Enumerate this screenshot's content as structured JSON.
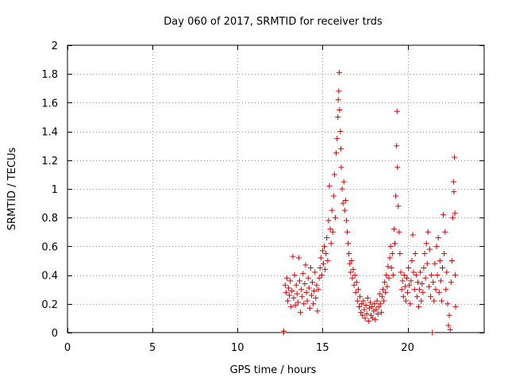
{
  "chart_data": {
    "type": "scatter",
    "title": "Day 060 of 2017, SRMTID for receiver trds",
    "xlabel": "GPS time / hours",
    "ylabel": "SRMTID / TECUs",
    "xlim": [
      0,
      24.5
    ],
    "ylim": [
      0,
      2
    ],
    "xticks": [
      0,
      5,
      10,
      15,
      20
    ],
    "xtick_labels": [
      "0",
      "5",
      "10",
      "15",
      "20"
    ],
    "yticks": [
      0,
      0.2,
      0.4,
      0.6,
      0.8,
      1,
      1.2,
      1.4,
      1.6,
      1.8,
      2
    ],
    "ytick_labels": [
      "0",
      "0.2",
      "0.4",
      "0.6",
      "0.8",
      "1",
      "1.2",
      "1.4",
      "1.6",
      "1.8",
      "2"
    ],
    "grid": true,
    "marker": "+",
    "series": [
      {
        "name": "SRMTID",
        "color": "#e00000",
        "points": [
          [
            12.7,
            0.0
          ],
          [
            12.72,
            0.01
          ],
          [
            12.8,
            0.33
          ],
          [
            12.85,
            0.28
          ],
          [
            12.9,
            0.38
          ],
          [
            12.95,
            0.22
          ],
          [
            13.0,
            0.31
          ],
          [
            13.05,
            0.26
          ],
          [
            13.1,
            0.36
          ],
          [
            13.15,
            0.18
          ],
          [
            13.2,
            0.29
          ],
          [
            13.25,
            0.53
          ],
          [
            13.3,
            0.24
          ],
          [
            13.35,
            0.4
          ],
          [
            13.4,
            0.19
          ],
          [
            13.45,
            0.33
          ],
          [
            13.5,
            0.27
          ],
          [
            13.55,
            0.21
          ],
          [
            13.6,
            0.52
          ],
          [
            13.65,
            0.36
          ],
          [
            13.7,
            0.14
          ],
          [
            13.75,
            0.3
          ],
          [
            13.8,
            0.25
          ],
          [
            13.85,
            0.41
          ],
          [
            13.9,
            0.2
          ],
          [
            13.95,
            0.34
          ],
          [
            14.0,
            0.47
          ],
          [
            14.05,
            0.28
          ],
          [
            14.1,
            0.22
          ],
          [
            14.15,
            0.38
          ],
          [
            14.2,
            0.31
          ],
          [
            14.25,
            0.17
          ],
          [
            14.3,
            0.45
          ],
          [
            14.35,
            0.26
          ],
          [
            14.4,
            0.35
          ],
          [
            14.45,
            0.2
          ],
          [
            14.5,
            0.29
          ],
          [
            14.55,
            0.42
          ],
          [
            14.6,
            0.24
          ],
          [
            14.65,
            0.33
          ],
          [
            14.7,
            0.15
          ],
          [
            14.75,
            0.3
          ],
          [
            14.8,
            0.38
          ],
          [
            14.85,
            0.45
          ],
          [
            14.9,
            0.52
          ],
          [
            14.95,
            0.4
          ],
          [
            15.0,
            0.57
          ],
          [
            15.05,
            0.48
          ],
          [
            15.1,
            0.6
          ],
          [
            15.15,
            0.44
          ],
          [
            15.2,
            0.55
          ],
          [
            15.25,
            0.66
          ],
          [
            15.3,
            0.5
          ],
          [
            15.35,
            0.78
          ],
          [
            15.4,
            1.02
          ],
          [
            15.45,
            0.72
          ],
          [
            15.5,
            0.62
          ],
          [
            15.55,
            0.85
          ],
          [
            15.6,
            0.7
          ],
          [
            15.65,
            0.95
          ],
          [
            15.7,
            1.1
          ],
          [
            15.75,
            0.8
          ],
          [
            15.8,
            1.25
          ],
          [
            15.85,
            1.35
          ],
          [
            15.9,
            1.5
          ],
          [
            15.92,
            1.62
          ],
          [
            15.95,
            1.68
          ],
          [
            15.98,
            1.81
          ],
          [
            16.0,
            1.55
          ],
          [
            16.05,
            1.4
          ],
          [
            16.08,
            1.28
          ],
          [
            16.1,
            1.15
          ],
          [
            16.15,
            1.0
          ],
          [
            16.2,
            0.9
          ],
          [
            16.25,
            1.05
          ],
          [
            16.3,
            0.85
          ],
          [
            16.35,
            0.92
          ],
          [
            16.4,
            0.78
          ],
          [
            16.45,
            0.7
          ],
          [
            16.5,
            0.62
          ],
          [
            16.55,
            0.55
          ],
          [
            16.6,
            0.48
          ],
          [
            16.65,
            0.42
          ],
          [
            16.7,
            0.5
          ],
          [
            16.75,
            0.38
          ],
          [
            16.8,
            0.44
          ],
          [
            16.85,
            0.33
          ],
          [
            16.9,
            0.4
          ],
          [
            16.95,
            0.28
          ],
          [
            17.0,
            0.35
          ],
          [
            17.05,
            0.22
          ],
          [
            17.1,
            0.3
          ],
          [
            17.15,
            0.18
          ],
          [
            17.2,
            0.25
          ],
          [
            17.25,
            0.14
          ],
          [
            17.3,
            0.2
          ],
          [
            17.35,
            0.12
          ],
          [
            17.4,
            0.22
          ],
          [
            17.45,
            0.16
          ],
          [
            17.5,
            0.1
          ],
          [
            17.55,
            0.19
          ],
          [
            17.6,
            0.13
          ],
          [
            17.65,
            0.24
          ],
          [
            17.7,
            0.08
          ],
          [
            17.75,
            0.17
          ],
          [
            17.8,
            0.21
          ],
          [
            17.85,
            0.12
          ],
          [
            17.9,
            0.18
          ],
          [
            17.95,
            0.1
          ],
          [
            18.0,
            0.15
          ],
          [
            18.05,
            0.2
          ],
          [
            18.1,
            0.09
          ],
          [
            18.15,
            0.16
          ],
          [
            18.2,
            0.22
          ],
          [
            18.25,
            0.13
          ],
          [
            18.3,
            0.18
          ],
          [
            18.35,
            0.27
          ],
          [
            18.4,
            0.2
          ],
          [
            18.45,
            0.14
          ],
          [
            18.5,
            0.25
          ],
          [
            18.55,
            0.3
          ],
          [
            18.6,
            0.22
          ],
          [
            18.65,
            0.35
          ],
          [
            18.7,
            0.28
          ],
          [
            18.75,
            0.4
          ],
          [
            18.8,
            0.32
          ],
          [
            18.85,
            0.46
          ],
          [
            18.9,
            0.38
          ],
          [
            18.95,
            0.52
          ],
          [
            19.0,
            0.6
          ],
          [
            19.05,
            0.45
          ],
          [
            19.1,
            0.55
          ],
          [
            19.15,
            0.4
          ],
          [
            19.2,
            0.72
          ],
          [
            19.25,
            0.62
          ],
          [
            19.3,
            0.95
          ],
          [
            19.35,
            1.3
          ],
          [
            19.38,
            1.54
          ],
          [
            19.4,
            1.15
          ],
          [
            19.45,
            0.88
          ],
          [
            19.5,
            0.7
          ],
          [
            19.55,
            0.55
          ],
          [
            19.6,
            0.42
          ],
          [
            19.65,
            0.3
          ],
          [
            19.7,
            0.36
          ],
          [
            19.75,
            0.25
          ],
          [
            19.8,
            0.4
          ],
          [
            19.85,
            0.32
          ],
          [
            19.9,
            0.22
          ],
          [
            19.95,
            0.38
          ],
          [
            20.0,
            0.28
          ],
          [
            20.05,
            0.45
          ],
          [
            20.1,
            0.33
          ],
          [
            20.15,
            0.2
          ],
          [
            20.2,
            0.36
          ],
          [
            20.25,
            0.5
          ],
          [
            20.3,
            0.68
          ],
          [
            20.35,
            0.42
          ],
          [
            20.4,
            0.3
          ],
          [
            20.45,
            0.55
          ],
          [
            20.5,
            0.4
          ],
          [
            20.55,
            0.25
          ],
          [
            20.6,
            0.35
          ],
          [
            20.65,
            0.18
          ],
          [
            20.7,
            0.3
          ],
          [
            20.75,
            0.42
          ],
          [
            20.8,
            0.22
          ],
          [
            20.85,
            0.34
          ],
          [
            20.9,
            0.28
          ],
          [
            20.95,
            0.45
          ],
          [
            21.0,
            0.55
          ],
          [
            21.05,
            0.38
          ],
          [
            21.1,
            0.62
          ],
          [
            21.15,
            0.48
          ],
          [
            21.2,
            0.7
          ],
          [
            21.25,
            0.32
          ],
          [
            21.3,
            0.58
          ],
          [
            21.35,
            0.25
          ],
          [
            21.4,
            0.4
          ],
          [
            21.45,
            0.0
          ],
          [
            21.5,
            0.35
          ],
          [
            21.55,
            0.22
          ],
          [
            21.6,
            0.48
          ],
          [
            21.65,
            0.3
          ],
          [
            21.7,
            0.6
          ],
          [
            21.75,
            0.4
          ],
          [
            21.8,
            0.66
          ],
          [
            21.85,
            0.28
          ],
          [
            21.9,
            0.5
          ],
          [
            21.95,
            0.36
          ],
          [
            22.0,
            0.22
          ],
          [
            22.05,
            0.45
          ],
          [
            22.1,
            0.82
          ],
          [
            22.15,
            0.55
          ],
          [
            22.2,
            0.7
          ],
          [
            22.25,
            0.3
          ],
          [
            22.3,
            0.42
          ],
          [
            22.35,
            0.2
          ],
          [
            22.4,
            0.05
          ],
          [
            22.45,
            0.12
          ],
          [
            22.5,
            0.02
          ],
          [
            22.55,
            0.35
          ],
          [
            22.6,
            0.5
          ],
          [
            22.65,
            0.8
          ],
          [
            22.7,
            1.05
          ],
          [
            22.72,
            0.98
          ],
          [
            22.75,
            1.22
          ],
          [
            22.78,
            0.83
          ],
          [
            22.8,
            0.4
          ],
          [
            22.82,
            0.18
          ]
        ]
      }
    ]
  }
}
